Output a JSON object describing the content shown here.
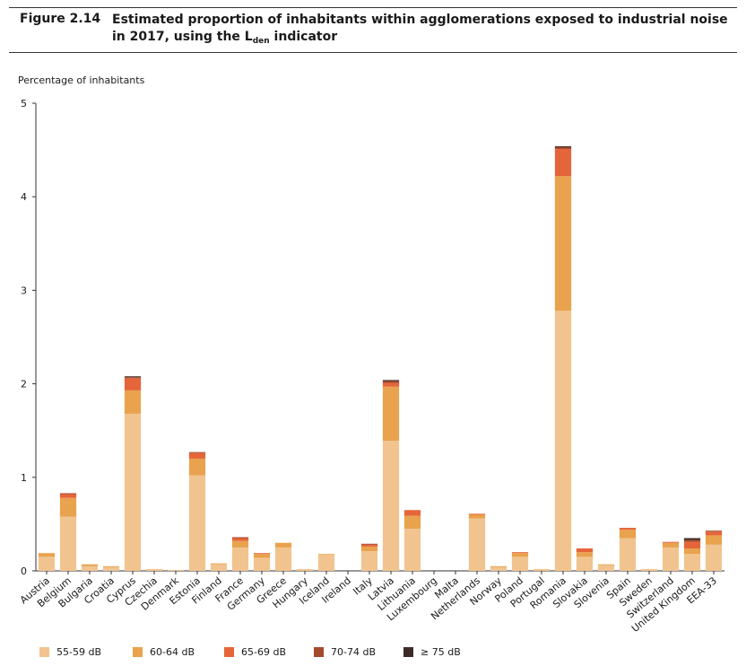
{
  "figure": {
    "number": "Figure 2.14",
    "title_before": "Estimated proportion of inhabitants within agglomerations exposed to industrial noise in 2017, using the L",
    "title_sub": "den",
    "title_after": " indicator"
  },
  "chart_data": {
    "type": "bar",
    "stacked": true,
    "ylabel": "Percentage of inhabitants",
    "ylim": [
      0,
      5
    ],
    "yticks": [
      0,
      1,
      2,
      3,
      4,
      5
    ],
    "grid": false,
    "legend_position": "bottom",
    "categories": [
      "Austria",
      "Belgium",
      "Bulgaria",
      "Croatia",
      "Cyprus",
      "Czechia",
      "Denmark",
      "Estonia",
      "Finland",
      "France",
      "Germany",
      "Greece",
      "Hungary",
      "Iceland",
      "Ireland",
      "Italy",
      "Latvia",
      "Lithuania",
      "Luxembourg",
      "Malta",
      "Netherlands",
      "Norway",
      "Poland",
      "Portugal",
      "Romania",
      "Slovakia",
      "Slovenia",
      "Spain",
      "Sweden",
      "Switzerland",
      "United Kingdom",
      "EEA-33"
    ],
    "series": [
      {
        "name": "55-59 dB",
        "color": "#f1c48f",
        "values": [
          0.15,
          0.58,
          0.05,
          0.04,
          1.68,
          0.02,
          0.01,
          1.02,
          0.07,
          0.25,
          0.14,
          0.25,
          0.02,
          0.17,
          0.0,
          0.21,
          1.39,
          0.45,
          0.0,
          0.0,
          0.56,
          0.04,
          0.15,
          0.02,
          2.78,
          0.15,
          0.06,
          0.35,
          0.02,
          0.25,
          0.18,
          0.28
        ]
      },
      {
        "name": "60-64 dB",
        "color": "#e9a24e",
        "values": [
          0.04,
          0.2,
          0.02,
          0.01,
          0.25,
          0.0,
          0.0,
          0.18,
          0.01,
          0.07,
          0.04,
          0.05,
          0.0,
          0.01,
          0.0,
          0.05,
          0.58,
          0.14,
          0.0,
          0.0,
          0.04,
          0.01,
          0.04,
          0.0,
          1.44,
          0.05,
          0.01,
          0.09,
          0.0,
          0.05,
          0.06,
          0.1
        ]
      },
      {
        "name": "65-69 dB",
        "color": "#e5653a",
        "values": [
          0.0,
          0.04,
          0.0,
          0.0,
          0.13,
          0.0,
          0.0,
          0.06,
          0.0,
          0.03,
          0.01,
          0.0,
          0.0,
          0.0,
          0.0,
          0.02,
          0.04,
          0.06,
          0.0,
          0.0,
          0.01,
          0.0,
          0.01,
          0.0,
          0.29,
          0.04,
          0.0,
          0.02,
          0.0,
          0.01,
          0.07,
          0.04
        ]
      },
      {
        "name": "70-74 dB",
        "color": "#a5492c",
        "values": [
          0.0,
          0.01,
          0.0,
          0.0,
          0.01,
          0.0,
          0.0,
          0.01,
          0.0,
          0.01,
          0.0,
          0.0,
          0.0,
          0.0,
          0.0,
          0.01,
          0.02,
          0.0,
          0.0,
          0.0,
          0.0,
          0.0,
          0.0,
          0.0,
          0.02,
          0.0,
          0.0,
          0.0,
          0.0,
          0.0,
          0.02,
          0.01
        ]
      },
      {
        "name": "≥ 75 dB",
        "color": "#3d2a26",
        "values": [
          0.0,
          0.0,
          0.0,
          0.0,
          0.01,
          0.0,
          0.0,
          0.0,
          0.0,
          0.0,
          0.0,
          0.0,
          0.0,
          0.0,
          0.0,
          0.0,
          0.01,
          0.0,
          0.0,
          0.0,
          0.0,
          0.0,
          0.0,
          0.0,
          0.01,
          0.0,
          0.0,
          0.0,
          0.0,
          0.0,
          0.02,
          0.0
        ]
      }
    ]
  }
}
